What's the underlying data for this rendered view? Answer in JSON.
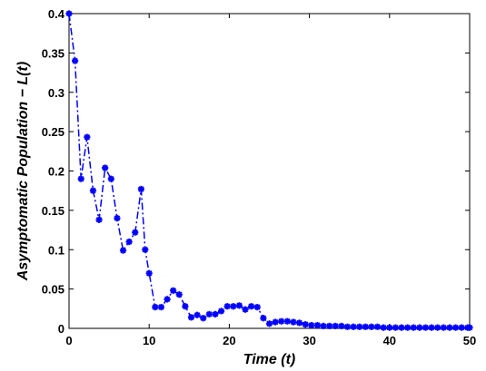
{
  "chart_data": {
    "type": "line",
    "title": "",
    "xlabel": "Time (t)",
    "ylabel": "Asymptomatic Population − L(t)",
    "xlim": [
      0,
      50
    ],
    "ylim": [
      0,
      0.4
    ],
    "xticks": [
      0,
      10,
      20,
      30,
      40,
      50
    ],
    "xtick_labels": [
      "0",
      "10",
      "20",
      "30",
      "40",
      "50"
    ],
    "yticks": [
      0,
      0.05,
      0.1,
      0.15,
      0.2,
      0.25,
      0.3,
      0.35,
      0.4
    ],
    "ytick_labels": [
      "0",
      "0.05",
      "0.1",
      "0.15",
      "0.2",
      "0.25",
      "0.3",
      "0.35",
      "0.4"
    ],
    "grid": false,
    "series": [
      {
        "color": "#0000ff",
        "line_style": "dash-dot",
        "marker": "asterisk",
        "x": [
          0,
          0.75,
          1.5,
          2.25,
          3,
          3.75,
          4.5,
          5.25,
          6,
          6.75,
          7.5,
          8.25,
          9,
          9.5,
          10,
          10.75,
          11.5,
          12.25,
          13,
          13.75,
          14.5,
          15.25,
          16,
          16.75,
          17.5,
          18.25,
          19,
          19.75,
          20.5,
          21.25,
          22,
          22.75,
          23.5,
          24.25,
          25,
          25.75,
          26.5,
          27.25,
          28,
          28.75,
          29.5,
          30.25,
          31,
          31.75,
          32.5,
          33.25,
          34,
          34.75,
          35.5,
          36.25,
          37,
          37.75,
          38.5,
          39.25,
          40,
          40.75,
          41.5,
          42.25,
          43,
          43.75,
          44.5,
          45.25,
          46,
          46.75,
          47.5,
          48.25,
          49,
          49.75,
          50
        ],
        "y": [
          0.4,
          0.34,
          0.19,
          0.243,
          0.175,
          0.138,
          0.204,
          0.19,
          0.14,
          0.099,
          0.11,
          0.122,
          0.177,
          0.1,
          0.07,
          0.027,
          0.027,
          0.037,
          0.048,
          0.043,
          0.028,
          0.014,
          0.017,
          0.013,
          0.018,
          0.018,
          0.022,
          0.028,
          0.028,
          0.029,
          0.024,
          0.028,
          0.027,
          0.013,
          0.006,
          0.008,
          0.009,
          0.009,
          0.008,
          0.007,
          0.005,
          0.004,
          0.004,
          0.003,
          0.003,
          0.003,
          0.003,
          0.002,
          0.002,
          0.002,
          0.002,
          0.002,
          0.002,
          0.001,
          0.001,
          0.001,
          0.001,
          0.001,
          0.001,
          0.001,
          0.001,
          0.001,
          0.001,
          0.001,
          0.001,
          0.001,
          0.001,
          0.001,
          0.001
        ]
      }
    ]
  }
}
